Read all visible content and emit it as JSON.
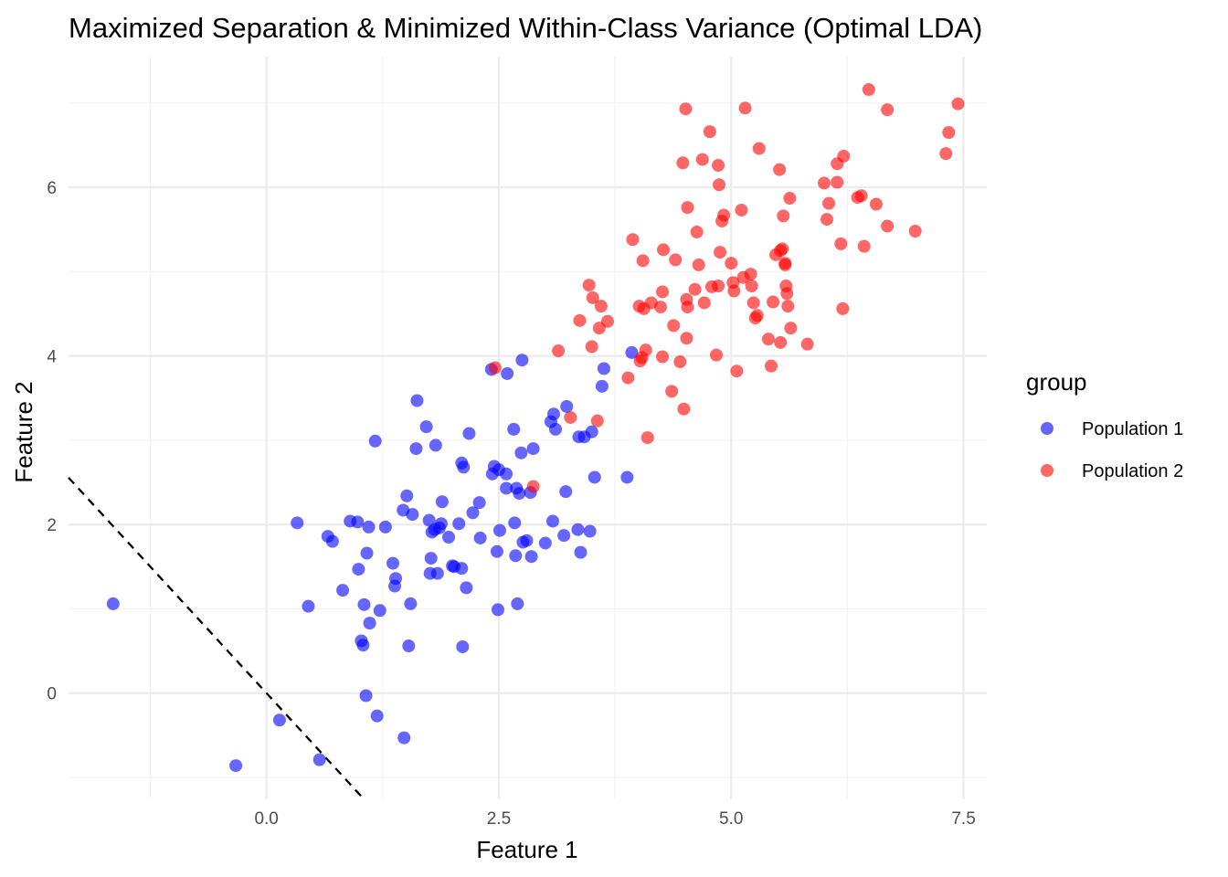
{
  "chart_data": {
    "type": "scatter",
    "title": "Maximized Separation & Minimized Within-Class Variance (Optimal LDA)",
    "xlabel": "Feature 1",
    "ylabel": "Feature 2",
    "xlim": [
      -2.13,
      7.75
    ],
    "ylim": [
      -1.26,
      7.55
    ],
    "x_ticks": [
      0.0,
      2.5,
      5.0,
      7.5
    ],
    "x_tick_labels": [
      "0.0",
      "2.5",
      "5.0",
      "7.5"
    ],
    "y_ticks": [
      0,
      2,
      4,
      6
    ],
    "y_tick_labels": [
      "0",
      "2",
      "4",
      "6"
    ],
    "x_minor_ticks": [
      -1.25,
      1.25,
      3.75,
      6.25
    ],
    "y_minor_ticks": [
      -1,
      1,
      3,
      5,
      7
    ],
    "grid": true,
    "legend": {
      "title": "group",
      "position": "right"
    },
    "decision_boundary": {
      "style": "dashed",
      "color": "#000000",
      "slope": -1.2,
      "intercept": 0.0
    },
    "series": [
      {
        "name": "Population 1",
        "color": "#0000FF",
        "points": [
          [
            -1.65,
            1.06
          ],
          [
            -0.33,
            -0.86
          ],
          [
            0.14,
            -0.32
          ],
          [
            0.33,
            2.02
          ],
          [
            0.45,
            1.03
          ],
          [
            0.57,
            -0.79
          ],
          [
            0.66,
            1.86
          ],
          [
            0.71,
            1.8
          ],
          [
            0.82,
            1.22
          ],
          [
            0.9,
            2.04
          ],
          [
            0.98,
            2.03
          ],
          [
            0.99,
            1.47
          ],
          [
            1.02,
            0.62
          ],
          [
            1.04,
            0.57
          ],
          [
            1.05,
            1.05
          ],
          [
            1.07,
            -0.03
          ],
          [
            1.08,
            1.66
          ],
          [
            1.1,
            1.97
          ],
          [
            1.11,
            0.83
          ],
          [
            1.17,
            2.99
          ],
          [
            1.19,
            -0.27
          ],
          [
            1.22,
            0.98
          ],
          [
            1.28,
            1.97
          ],
          [
            1.36,
            1.54
          ],
          [
            1.38,
            1.27
          ],
          [
            1.39,
            1.36
          ],
          [
            1.47,
            2.17
          ],
          [
            1.48,
            -0.53
          ],
          [
            1.51,
            2.34
          ],
          [
            1.53,
            0.56
          ],
          [
            1.55,
            1.06
          ],
          [
            1.57,
            2.12
          ],
          [
            1.61,
            2.9
          ],
          [
            1.62,
            3.47
          ],
          [
            1.72,
            3.16
          ],
          [
            1.75,
            2.05
          ],
          [
            1.76,
            1.42
          ],
          [
            1.77,
            1.6
          ],
          [
            1.78,
            1.91
          ],
          [
            1.81,
            1.94
          ],
          [
            1.82,
            2.94
          ],
          [
            1.84,
            1.42
          ],
          [
            1.86,
            1.96
          ],
          [
            1.88,
            2.01
          ],
          [
            1.89,
            2.27
          ],
          [
            1.96,
            1.85
          ],
          [
            2.0,
            1.51
          ],
          [
            2.02,
            1.5
          ],
          [
            2.07,
            2.01
          ],
          [
            2.1,
            1.48
          ],
          [
            2.1,
            2.73
          ],
          [
            2.11,
            0.55
          ],
          [
            2.12,
            2.68
          ],
          [
            2.15,
            1.25
          ],
          [
            2.18,
            3.08
          ],
          [
            2.22,
            2.14
          ],
          [
            2.29,
            2.26
          ],
          [
            2.3,
            1.84
          ],
          [
            2.42,
            3.84
          ],
          [
            2.43,
            2.6
          ],
          [
            2.45,
            2.69
          ],
          [
            2.48,
            1.68
          ],
          [
            2.49,
            0.99
          ],
          [
            2.5,
            2.65
          ],
          [
            2.51,
            1.93
          ],
          [
            2.58,
            2.43
          ],
          [
            2.58,
            2.6
          ],
          [
            2.59,
            3.79
          ],
          [
            2.66,
            3.13
          ],
          [
            2.67,
            2.02
          ],
          [
            2.68,
            1.63
          ],
          [
            2.69,
            2.43
          ],
          [
            2.7,
            1.06
          ],
          [
            2.72,
            2.37
          ],
          [
            2.74,
            2.85
          ],
          [
            2.75,
            3.95
          ],
          [
            2.76,
            1.79
          ],
          [
            2.8,
            1.81
          ],
          [
            2.84,
            2.38
          ],
          [
            2.85,
            1.62
          ],
          [
            2.87,
            2.9
          ],
          [
            3.0,
            1.78
          ],
          [
            3.06,
            3.22
          ],
          [
            3.08,
            2.04
          ],
          [
            3.09,
            3.31
          ],
          [
            3.11,
            3.13
          ],
          [
            3.2,
            1.87
          ],
          [
            3.22,
            2.39
          ],
          [
            3.23,
            3.4
          ],
          [
            3.35,
            1.94
          ],
          [
            3.36,
            3.04
          ],
          [
            3.38,
            1.67
          ],
          [
            3.42,
            3.04
          ],
          [
            3.48,
            1.92
          ],
          [
            3.5,
            3.1
          ],
          [
            3.53,
            2.56
          ],
          [
            3.61,
            3.64
          ],
          [
            3.63,
            3.85
          ],
          [
            3.88,
            2.56
          ],
          [
            3.93,
            4.04
          ]
        ]
      },
      {
        "name": "Population 2",
        "color": "#FF0000",
        "points": [
          [
            2.46,
            3.86
          ],
          [
            2.87,
            2.45
          ],
          [
            3.14,
            4.06
          ],
          [
            3.27,
            3.27
          ],
          [
            3.37,
            4.42
          ],
          [
            3.47,
            4.84
          ],
          [
            3.5,
            4.11
          ],
          [
            3.51,
            4.69
          ],
          [
            3.56,
            3.23
          ],
          [
            3.58,
            4.33
          ],
          [
            3.6,
            4.59
          ],
          [
            3.67,
            4.41
          ],
          [
            3.89,
            3.74
          ],
          [
            3.94,
            5.38
          ],
          [
            4.01,
            4.59
          ],
          [
            4.02,
            3.94
          ],
          [
            4.04,
            3.98
          ],
          [
            4.05,
            5.13
          ],
          [
            4.06,
            4.56
          ],
          [
            4.08,
            4.07
          ],
          [
            4.1,
            3.03
          ],
          [
            4.14,
            4.63
          ],
          [
            4.24,
            4.58
          ],
          [
            4.26,
            4.76
          ],
          [
            4.26,
            3.99
          ],
          [
            4.27,
            5.26
          ],
          [
            4.36,
            3.58
          ],
          [
            4.38,
            4.36
          ],
          [
            4.4,
            5.14
          ],
          [
            4.45,
            3.93
          ],
          [
            4.48,
            6.29
          ],
          [
            4.49,
            3.37
          ],
          [
            4.51,
            6.93
          ],
          [
            4.52,
            4.21
          ],
          [
            4.52,
            4.67
          ],
          [
            4.53,
            5.76
          ],
          [
            4.53,
            4.58
          ],
          [
            4.61,
            4.79
          ],
          [
            4.63,
            5.47
          ],
          [
            4.65,
            5.08
          ],
          [
            4.69,
            6.33
          ],
          [
            4.71,
            4.63
          ],
          [
            4.77,
            6.66
          ],
          [
            4.79,
            4.82
          ],
          [
            4.84,
            4.01
          ],
          [
            4.86,
            4.83
          ],
          [
            4.86,
            6.26
          ],
          [
            4.87,
            6.03
          ],
          [
            4.88,
            5.23
          ],
          [
            4.9,
            5.6
          ],
          [
            4.92,
            5.67
          ],
          [
            5.0,
            5.1
          ],
          [
            5.02,
            4.87
          ],
          [
            5.03,
            4.77
          ],
          [
            5.06,
            3.82
          ],
          [
            5.11,
            5.73
          ],
          [
            5.13,
            4.93
          ],
          [
            5.15,
            6.94
          ],
          [
            5.21,
            4.97
          ],
          [
            5.22,
            4.83
          ],
          [
            5.24,
            4.63
          ],
          [
            5.26,
            4.45
          ],
          [
            5.28,
            4.48
          ],
          [
            5.3,
            6.46
          ],
          [
            5.4,
            4.2
          ],
          [
            5.43,
            3.88
          ],
          [
            5.45,
            4.64
          ],
          [
            5.48,
            5.2
          ],
          [
            5.52,
            6.21
          ],
          [
            5.53,
            5.25
          ],
          [
            5.53,
            4.16
          ],
          [
            5.55,
            5.27
          ],
          [
            5.56,
            5.66
          ],
          [
            5.58,
            5.1
          ],
          [
            5.58,
            5.08
          ],
          [
            5.59,
            4.83
          ],
          [
            5.6,
            4.74
          ],
          [
            5.61,
            4.59
          ],
          [
            5.63,
            5.87
          ],
          [
            5.64,
            4.33
          ],
          [
            5.82,
            4.14
          ],
          [
            6.0,
            6.05
          ],
          [
            6.03,
            5.62
          ],
          [
            6.05,
            5.81
          ],
          [
            6.14,
            6.28
          ],
          [
            6.14,
            6.06
          ],
          [
            6.18,
            5.33
          ],
          [
            6.2,
            4.56
          ],
          [
            6.21,
            6.37
          ],
          [
            6.36,
            5.88
          ],
          [
            6.4,
            5.9
          ],
          [
            6.43,
            5.3
          ],
          [
            6.48,
            7.16
          ],
          [
            6.56,
            5.8
          ],
          [
            6.68,
            6.92
          ],
          [
            6.68,
            5.54
          ],
          [
            6.98,
            5.48
          ],
          [
            7.31,
            6.4
          ],
          [
            7.34,
            6.65
          ],
          [
            7.44,
            6.99
          ]
        ]
      }
    ]
  }
}
